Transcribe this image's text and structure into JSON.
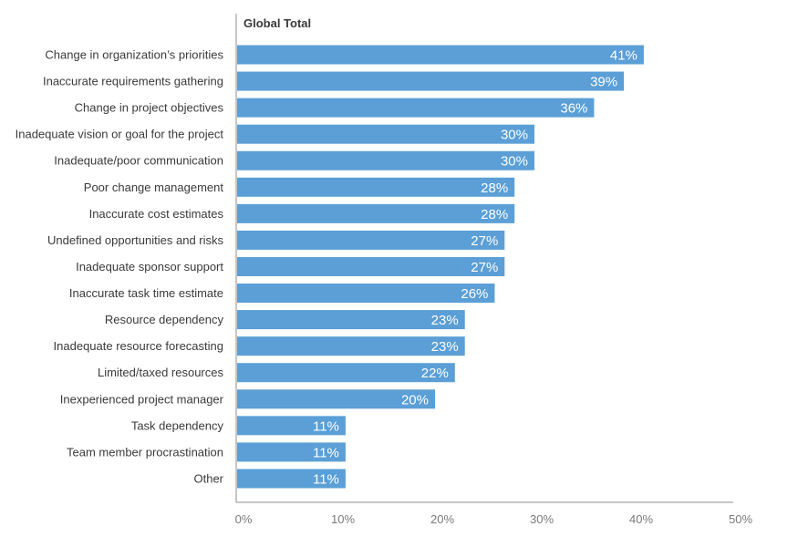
{
  "chart_data": {
    "type": "bar",
    "orientation": "horizontal",
    "title": "Global Total",
    "categories": [
      "Change in organization’s priorities",
      "Inaccurate requirements gathering",
      "Change in project objectives",
      "Inadequate vision or goal for the project",
      "Inadequate/poor communication",
      "Poor change management",
      "Inaccurate cost estimates",
      "Undefined opportunities and risks",
      "Inadequate sponsor support",
      "Inaccurate task time estimate",
      "Resource dependency",
      "Inadequate resource forecasting",
      "Limited/taxed resources",
      "Inexperienced project manager",
      "Task dependency",
      "Team member procrastination",
      "Other"
    ],
    "values": [
      41,
      39,
      36,
      30,
      30,
      28,
      28,
      27,
      27,
      26,
      23,
      23,
      22,
      20,
      11,
      11,
      11
    ],
    "value_labels": [
      "41%",
      "39%",
      "36%",
      "30%",
      "30%",
      "28%",
      "28%",
      "27%",
      "27%",
      "26%",
      "23%",
      "23%",
      "22%",
      "20%",
      "11%",
      "11%",
      "11%"
    ],
    "xlim": [
      0,
      50
    ],
    "xticks": [
      0,
      10,
      20,
      30,
      40,
      50
    ],
    "xtick_labels": [
      "0%",
      "10%",
      "20%",
      "30%",
      "40%",
      "50%"
    ],
    "grid": false,
    "bar_color": "#5b9fd6",
    "axis_color": "#8c8c8c"
  }
}
